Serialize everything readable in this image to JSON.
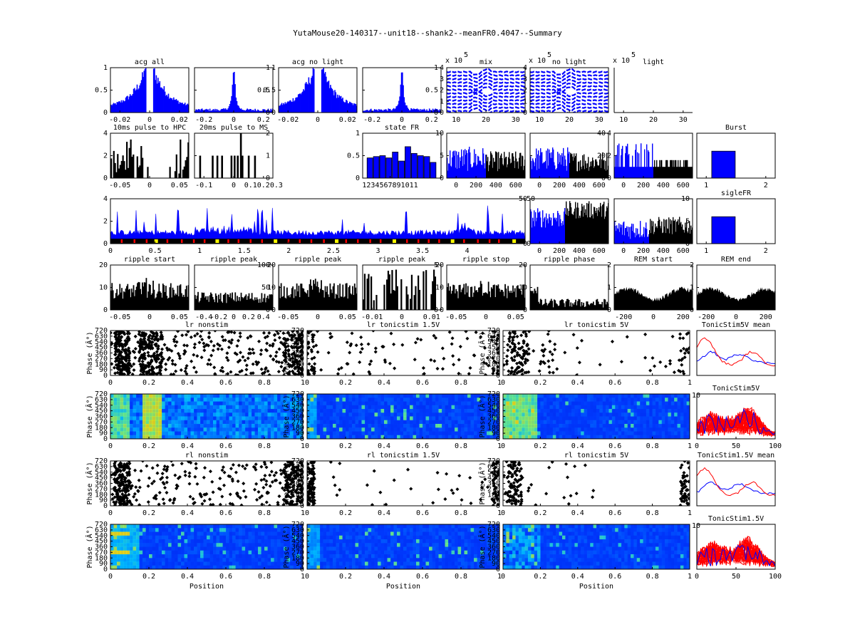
{
  "title": "YutaMouse20-140317--unit18--shank2--meanFR0.4047--Summary",
  "colors": {
    "blue": "#0000ff",
    "black": "#000000",
    "red": "#ff0000",
    "yellow": "#ffff00",
    "frame": "#000000"
  },
  "chart_data": [
    {
      "type": "bar",
      "title": "acg all",
      "ylim": [
        0,
        1
      ],
      "yticks": [
        "0",
        "0.5",
        "1"
      ],
      "xticks": [
        "-0.02",
        "0",
        "0.02"
      ],
      "xlim": [
        -0.03,
        0.03
      ],
      "color": "#0000ff",
      "shape": "acg_gap"
    },
    {
      "type": "bar",
      "title": "",
      "ylim": [
        0,
        1
      ],
      "yticks": [
        "0",
        "0.5",
        "1"
      ],
      "yaxis": "right",
      "xticks": [
        "-0.2",
        "0",
        "0.2"
      ],
      "xlim": [
        -0.3,
        0.3
      ],
      "color": "#0000ff",
      "shape": "acg_peak"
    },
    {
      "type": "bar",
      "title": "acg no light",
      "ylim": [
        0,
        1
      ],
      "yticks": [
        "0",
        "0.5",
        "1"
      ],
      "xticks": [
        "-0.02",
        "0",
        "0.02"
      ],
      "xlim": [
        -0.03,
        0.03
      ],
      "color": "#0000ff",
      "shape": "acg_gap"
    },
    {
      "type": "bar",
      "title": "",
      "ylim": [
        0,
        1
      ],
      "yticks": [
        "0",
        "0.5",
        "1"
      ],
      "yaxis": "right",
      "xticks": [
        "-0.2",
        "0",
        "0.2"
      ],
      "xlim": [
        -0.3,
        0.3
      ],
      "color": "#0000ff",
      "shape": "acg_peak"
    },
    {
      "type": "line",
      "title": "mix",
      "exponent": "5",
      "multiplier": "x 10",
      "ylim": [
        0,
        4.5
      ],
      "yticks": [
        "0",
        "1",
        "2",
        "3",
        "4"
      ],
      "xticks": [
        "10",
        "20",
        "30"
      ],
      "xlim": [
        0,
        32
      ],
      "color": "#0000ff",
      "shape": "waves"
    },
    {
      "type": "line",
      "title": "no light",
      "exponent": "5",
      "multiplier": "x 10",
      "ylim": [
        0,
        4.5
      ],
      "yticks": [
        "0",
        "1",
        "2",
        "3",
        "4"
      ],
      "xticks": [
        "10",
        "20",
        "30"
      ],
      "xlim": [
        0,
        32
      ],
      "color": "#0000ff",
      "shape": "waves"
    },
    {
      "type": "line",
      "title": "light",
      "exponent": "5",
      "multiplier": "x 10",
      "ylim": [
        0,
        1
      ],
      "yticks": [],
      "xticks": [
        "10",
        "20",
        "30"
      ],
      "xlim": [
        0,
        32
      ],
      "color": "#0000ff",
      "shape": "empty",
      "noframe": true
    },
    {
      "type": "bar",
      "title": "10ms pulse to HPC",
      "ylim": [
        0,
        4
      ],
      "yticks": [
        "0",
        "2",
        "4"
      ],
      "xticks": [
        "-0.05",
        "0",
        "0.05"
      ],
      "xlim": [
        -0.1,
        0.1
      ],
      "color": "#000000",
      "shape": "sparse"
    },
    {
      "type": "bar",
      "title": "20ms pulse to MS",
      "ylim": [
        0,
        2
      ],
      "yticks": [
        "0",
        "1",
        "2"
      ],
      "yaxis": "right",
      "xticks": [
        "-0.1",
        "0",
        "0.10.20.3"
      ],
      "xlim": [
        -0.2,
        0.4
      ],
      "color": "#000000",
      "shape": "sparse2"
    },
    {
      "type": "bar",
      "title": "state FR",
      "categories": [
        "1",
        "2",
        "3",
        "4",
        "5",
        "6",
        "7",
        "8",
        "9",
        "10",
        "11"
      ],
      "values": [
        0.45,
        0.48,
        0.5,
        0.45,
        0.58,
        0.38,
        0.7,
        0.55,
        0.5,
        0.48,
        0.35
      ],
      "ylim": [
        0,
        1
      ],
      "yticks": [
        "0",
        "0.5",
        "1"
      ],
      "xticks": [
        "1234567891011"
      ],
      "color": "#0000ff",
      "shape": "statefr"
    },
    {
      "type": "bar",
      "title": "",
      "ylim": [
        0,
        10
      ],
      "yticks": [
        "0",
        "5",
        "10"
      ],
      "xticks": [
        "0",
        "200",
        "400",
        "600"
      ],
      "xlim": [
        0,
        700
      ],
      "colors": [
        "#0000ff",
        "#000000"
      ],
      "split": 0.5,
      "shape": "fr"
    },
    {
      "type": "bar",
      "title": "",
      "ylim": [
        0,
        40
      ],
      "yticks": [
        "0",
        "20",
        "40"
      ],
      "yaxis": "right",
      "xticks": [
        "0",
        "200",
        "400",
        "600"
      ],
      "xlim": [
        0,
        700
      ],
      "colors": [
        "#0000ff",
        "#000000"
      ],
      "split": 0.5,
      "shape": "fr"
    },
    {
      "type": "bar",
      "title": "",
      "ylim": [
        0,
        4
      ],
      "yticks": [
        "0",
        "2",
        "4"
      ],
      "xticks": [
        "0",
        "200",
        "400",
        "600"
      ],
      "xlim": [
        0,
        700
      ],
      "colors": [
        "#0000ff",
        "#000000"
      ],
      "split": 0.5,
      "shape": "fr2"
    },
    {
      "type": "bar",
      "title": "Burst",
      "categories": [
        "1",
        "2"
      ],
      "values": [
        0.6,
        0
      ],
      "ylim": [
        0,
        1
      ],
      "yticks": [],
      "xticks": [
        "1",
        "2"
      ],
      "xlim": [
        0.5,
        2.5
      ],
      "color": "#0000ff",
      "shape": "single"
    },
    {
      "type": "area",
      "title": "",
      "ylim": [
        0,
        5
      ],
      "yticks": [
        "0",
        "2",
        "4"
      ],
      "yaxis_right": [
        "0",
        "50"
      ],
      "xticks": [
        "0",
        "0.5",
        "1",
        "1.5",
        "2",
        "2.5",
        "3",
        "3.5",
        "4"
      ],
      "xlim": [
        0,
        4.65
      ],
      "color": "#0000ff",
      "shape": "longtrace"
    },
    {
      "type": "bar",
      "title": "",
      "ylim": [
        0,
        50
      ],
      "yticks": [
        "0",
        "50"
      ],
      "xticks": [
        "0",
        "200",
        "400",
        "600"
      ],
      "xlim": [
        0,
        700
      ],
      "colors": [
        "#0000ff",
        "#000000"
      ],
      "split": 0.45,
      "shape": "fr3"
    },
    {
      "type": "bar",
      "title": "",
      "ylim": [
        0,
        10
      ],
      "yticks": [
        "0",
        "5",
        "10"
      ],
      "yaxis": "right",
      "xticks": [
        "0",
        "200",
        "400",
        "600"
      ],
      "xlim": [
        0,
        700
      ],
      "colors": [
        "#0000ff",
        "#000000"
      ],
      "split": 0.45,
      "shape": "fr4"
    },
    {
      "type": "bar",
      "title": "sigleFR",
      "categories": [
        "1",
        "2"
      ],
      "values": [
        0.6,
        0
      ],
      "ylim": [
        0,
        1
      ],
      "yticks": [],
      "xticks": [
        "1",
        "2"
      ],
      "xlim": [
        0.5,
        2.5
      ],
      "color": "#0000ff",
      "shape": "single"
    },
    {
      "type": "bar",
      "title": "ripple start",
      "ylim": [
        0,
        20
      ],
      "yticks": [
        "0",
        "10",
        "20"
      ],
      "xticks": [
        "-0.05",
        "0",
        "0.05"
      ],
      "xlim": [
        -0.1,
        0.1
      ],
      "color": "#000000",
      "shape": "peri"
    },
    {
      "type": "bar",
      "title": "ripple peak",
      "ylim": [
        0,
        100
      ],
      "yticks": [
        "0",
        "50",
        "100"
      ],
      "yaxis": "right",
      "xticks": [
        "-0.4",
        "-0.2",
        "0",
        "0.2",
        "0.4"
      ],
      "xlim": [
        -0.5,
        0.5
      ],
      "color": "#000000",
      "shape": "peri_flat"
    },
    {
      "type": "bar",
      "title": "ripple peak",
      "ylim": [
        0,
        20
      ],
      "yticks": [
        "0",
        "10",
        "20"
      ],
      "xticks": [
        "-0.05",
        "0",
        "0.05"
      ],
      "xlim": [
        -0.1,
        0.1
      ],
      "color": "#000000",
      "shape": "peri"
    },
    {
      "type": "bar",
      "title": "ripple peak",
      "ylim": [
        0,
        5
      ],
      "yticks": [
        "0",
        "5"
      ],
      "yaxis": "right",
      "xticks": [
        "-0.01",
        "0",
        "0.01"
      ],
      "xlim": [
        -0.015,
        0.015
      ],
      "color": "#000000",
      "shape": "peri_sparse"
    },
    {
      "type": "bar",
      "title": "ripple stop",
      "ylim": [
        0,
        20
      ],
      "yticks": [
        "0",
        "10",
        "20"
      ],
      "xticks": [
        "-0.05",
        "0",
        "0.05"
      ],
      "xlim": [
        -0.1,
        0.1
      ],
      "color": "#000000",
      "shape": "peri"
    },
    {
      "type": "bar",
      "title": "ripple phase",
      "ylim": [
        0,
        20
      ],
      "yticks": [
        "0",
        "10",
        "20"
      ],
      "xticks": [],
      "xlim": [
        0,
        1
      ],
      "color": "#000000",
      "shape": "peri_low"
    },
    {
      "type": "area",
      "title": "REM start",
      "ylim": [
        0,
        2
      ],
      "yticks": [
        "0",
        "1",
        "2"
      ],
      "xticks": [
        "-200",
        "0",
        "200"
      ],
      "xlim": [
        -300,
        300
      ],
      "color": "#000000",
      "shape": "rem"
    },
    {
      "type": "area",
      "title": "REM end",
      "ylim": [
        0,
        2
      ],
      "yticks": [
        "0",
        "1",
        "2"
      ],
      "xticks": [
        "-200",
        "0",
        "200"
      ],
      "xlim": [
        -300,
        300
      ],
      "color": "#000000",
      "shape": "rem"
    },
    {
      "type": "scatter",
      "title": "lr nonstim",
      "ylabel": "Phase (Â°)",
      "ylim": [
        0,
        720
      ],
      "yticks": [
        "0",
        "90",
        "180",
        "270",
        "360",
        "450",
        "540",
        "630",
        "720"
      ],
      "xticks": [
        "0",
        "0.2",
        "0.4",
        "0.6",
        "0.8",
        "1"
      ],
      "xlim": [
        0,
        1
      ],
      "color": "#000000",
      "shape": "raster_dense"
    },
    {
      "type": "scatter",
      "title": "lr tonicstim 1.5V",
      "ylabel": "Phase (Â°)",
      "ylim": [
        0,
        720
      ],
      "yticks": [
        "0",
        "90",
        "180",
        "270",
        "360",
        "450",
        "540",
        "630",
        "720"
      ],
      "xticks": [
        "0",
        "0.2",
        "0.4",
        "0.6",
        "0.8",
        "1"
      ],
      "xlim": [
        0,
        1
      ],
      "color": "#000000",
      "shape": "raster_mid"
    },
    {
      "type": "scatter",
      "title": "lr tonicstim 5V",
      "ylabel": "Phase (Â°)",
      "ylim": [
        0,
        720
      ],
      "yticks": [
        "0",
        "90",
        "180",
        "270",
        "360",
        "450",
        "540",
        "630",
        "720"
      ],
      "xticks": [
        "0",
        "0.2",
        "0.4",
        "0.6",
        "0.8",
        "1"
      ],
      "xlim": [
        0,
        1
      ],
      "color": "#000000",
      "shape": "raster_left"
    },
    {
      "type": "line",
      "title": "TonicStim5V mean",
      "ylim": [
        0,
        1
      ],
      "yticks": [],
      "xticks": [],
      "xlim": [
        0,
        100
      ],
      "colors": [
        "#0000ff",
        "#ff0000"
      ],
      "shape": "mean"
    },
    {
      "type": "heatmap",
      "title": "",
      "ylabel": "Phase (Â°)",
      "ylim": [
        0,
        720
      ],
      "yticks": [
        "0",
        "90",
        "180",
        "270",
        "360",
        "450",
        "540",
        "630",
        "720"
      ],
      "xticks": [
        "0",
        "0.2",
        "0.4",
        "0.6",
        "0.8",
        "1"
      ],
      "xlim": [
        0,
        1
      ],
      "shape": "heat_dense"
    },
    {
      "type": "heatmap",
      "title": "",
      "ylabel": "Phase (Â°)",
      "ylim": [
        0,
        720
      ],
      "yticks": [
        "0",
        "90",
        "180",
        "270",
        "360",
        "450",
        "540",
        "630",
        "720"
      ],
      "xticks": [
        "0",
        "0.2",
        "0.4",
        "0.6",
        "0.8",
        "1"
      ],
      "xlim": [
        0,
        1
      ],
      "shape": "heat_sparse"
    },
    {
      "type": "heatmap",
      "title": "",
      "ylabel": "Phase (Â°)",
      "ylim": [
        0,
        720
      ],
      "yticks": [
        "0",
        "90",
        "180",
        "270",
        "360",
        "450",
        "540",
        "630",
        "720"
      ],
      "xticks": [
        "0",
        "0.2",
        "0.4",
        "0.6",
        "0.8",
        "1"
      ],
      "xlim": [
        0,
        1
      ],
      "extra_tick": "10",
      "shape": "heat_left"
    },
    {
      "type": "line",
      "title": "TonicStim5V",
      "ylim": [
        0,
        1
      ],
      "yticks": [],
      "xticks": [
        "0",
        "50",
        "100"
      ],
      "xlim": [
        0,
        100
      ],
      "colors": [
        "#ff0000",
        "#0000ff"
      ],
      "shape": "multi"
    },
    {
      "type": "scatter",
      "title": "rl nonstim",
      "ylabel": "Phase (Â°)",
      "ylim": [
        0,
        720
      ],
      "yticks": [
        "0",
        "90",
        "180",
        "270",
        "360",
        "450",
        "540",
        "630",
        "720"
      ],
      "xticks": [
        "0",
        "0.2",
        "0.4",
        "0.6",
        "0.8",
        "1"
      ],
      "xlim": [
        0,
        1
      ],
      "color": "#000000",
      "shape": "raster_dense2"
    },
    {
      "type": "scatter",
      "title": "rl tonicstim 1.5V",
      "ylabel": "Phase (Â°)",
      "ylim": [
        0,
        720
      ],
      "yticks": [
        "0",
        "90",
        "180",
        "270",
        "360",
        "450",
        "540",
        "630",
        "720"
      ],
      "xticks": [
        "0",
        "0.2",
        "0.4",
        "0.6",
        "0.8",
        "1"
      ],
      "xlim": [
        0,
        1
      ],
      "color": "#000000",
      "shape": "raster_edges"
    },
    {
      "type": "scatter",
      "title": "rl tonicstim 5V",
      "ylabel": "Phase (Â°)",
      "ylim": [
        0,
        720
      ],
      "yticks": [
        "0",
        "90",
        "180",
        "270",
        "360",
        "450",
        "540",
        "630",
        "720"
      ],
      "xticks": [
        "0",
        "0.2",
        "0.4",
        "0.6",
        "0.8",
        "1"
      ],
      "xlim": [
        0,
        1
      ],
      "color": "#000000",
      "shape": "raster_edges2"
    },
    {
      "type": "line",
      "title": "TonicStim1.5V mean",
      "ylim": [
        0,
        1
      ],
      "yticks": [],
      "xticks": [],
      "xlim": [
        0,
        100
      ],
      "colors": [
        "#0000ff",
        "#ff0000"
      ],
      "shape": "mean"
    },
    {
      "type": "heatmap",
      "title": "",
      "ylabel": "Phase (Â°)",
      "xlabel": "Position",
      "ylim": [
        0,
        720
      ],
      "yticks": [
        "0",
        "90",
        "180",
        "270",
        "360",
        "450",
        "540",
        "630",
        "720"
      ],
      "xticks": [
        "0",
        "0.2",
        "0.4",
        "0.6",
        "0.8",
        "1"
      ],
      "xlim": [
        0,
        1
      ],
      "shape": "heat_rl1"
    },
    {
      "type": "heatmap",
      "title": "",
      "ylabel": "Phase (Â°)",
      "xlabel": "Position",
      "ylim": [
        0,
        720
      ],
      "yticks": [
        "0",
        "90",
        "180",
        "270",
        "360",
        "450",
        "540",
        "630",
        "720"
      ],
      "xticks": [
        "0",
        "0.2",
        "0.4",
        "0.6",
        "0.8",
        "1"
      ],
      "xlim": [
        0,
        1
      ],
      "shape": "heat_rl2"
    },
    {
      "type": "heatmap",
      "title": "",
      "ylabel": "Phase (Â°)",
      "xlabel": "Position",
      "ylim": [
        0,
        720
      ],
      "yticks": [
        "0",
        "90",
        "180",
        "270",
        "360",
        "450",
        "540",
        "630",
        "720"
      ],
      "xticks": [
        "0",
        "0.2",
        "0.4",
        "0.6",
        "0.8",
        "1"
      ],
      "xlim": [
        0,
        1
      ],
      "extra_tick": "10",
      "shape": "heat_rl3"
    },
    {
      "type": "line",
      "title": "TonicStim1.5V",
      "ylim": [
        0,
        1
      ],
      "yticks": [],
      "xticks": [
        "0",
        "50",
        "100"
      ],
      "xlim": [
        0,
        100
      ],
      "colors": [
        "#ff0000",
        "#0000ff"
      ],
      "shape": "multi"
    }
  ]
}
